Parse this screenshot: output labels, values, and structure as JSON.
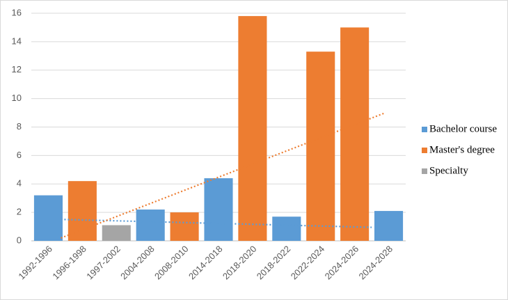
{
  "chart_data": {
    "type": "bar",
    "categories": [
      "1992-1996",
      "1996-1998",
      "1997-2002",
      "2004-2008",
      "2008-2010",
      "2014-2018",
      "2018-2020",
      "2018-2022",
      "2022-2024",
      "2024-2026",
      "2024-2028"
    ],
    "series": [
      {
        "name": "Bachelor course",
        "color": "#5b9bd5",
        "values": [
          3.2,
          null,
          null,
          2.2,
          null,
          4.4,
          null,
          1.7,
          null,
          null,
          2.1
        ],
        "trendline": {
          "x": [
            0.47,
            9.5
          ],
          "values": [
            1.5,
            0.95
          ]
        }
      },
      {
        "name": "Master's degree",
        "color": "#ed7d31",
        "values": [
          null,
          4.2,
          null,
          null,
          2.0,
          null,
          15.8,
          null,
          13.3,
          15.0,
          null
        ],
        "trendline": {
          "x": [
            0.37,
            9.9
          ],
          "values": [
            0.2,
            9.0
          ]
        }
      },
      {
        "name": "Specialty",
        "color": "#a5a5a5",
        "values": [
          null,
          null,
          1.1,
          null,
          null,
          null,
          null,
          null,
          null,
          null,
          null
        ]
      }
    ],
    "ylim": [
      0,
      16
    ],
    "yticks": [
      0,
      2,
      4,
      6,
      8,
      10,
      12,
      14,
      16
    ],
    "grid": true,
    "legend": "right"
  }
}
